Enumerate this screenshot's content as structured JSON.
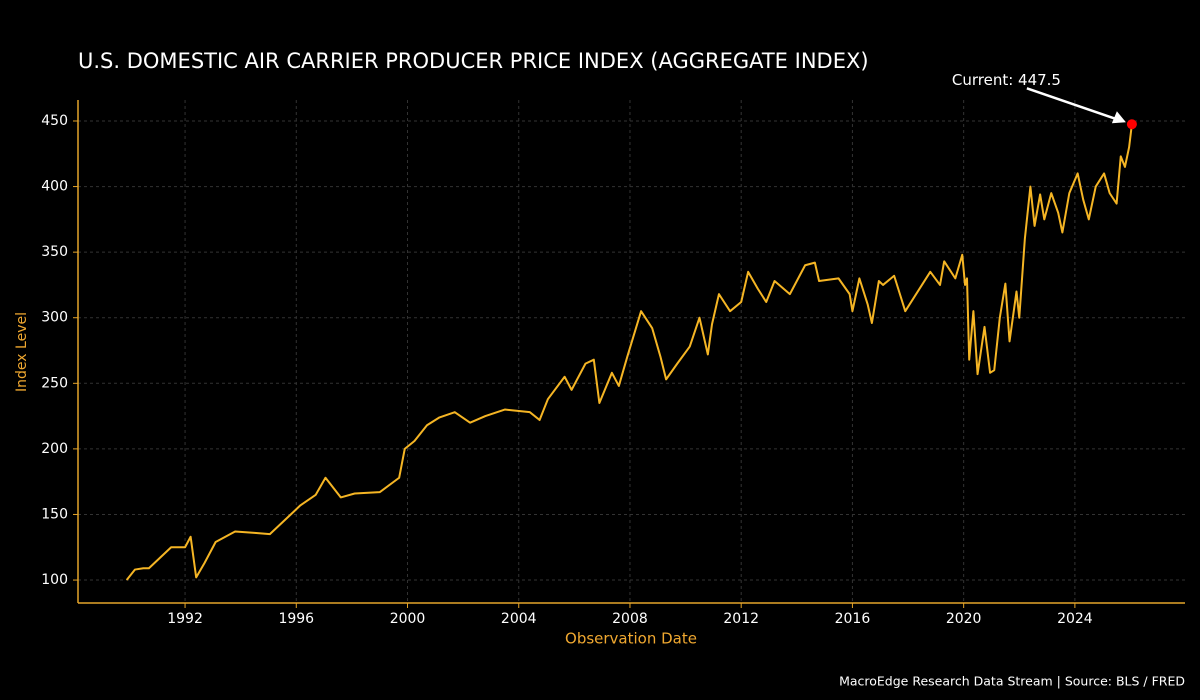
{
  "chart_data": {
    "type": "line",
    "title": "U.S. DOMESTIC AIR CARRIER PRODUCER PRICE INDEX (AGGREGATE INDEX)",
    "x_label": "Observation Date",
    "y_label": "Index Level",
    "source": "MacroEdge Research Data Stream | Source: BLS / FRED",
    "annotation": {
      "text": "Current: 447.5",
      "color": "#ff0000"
    },
    "x": [
      1989.9,
      1990.2,
      1990.5,
      1990.7,
      1991.0,
      1991.5,
      1992.0,
      1992.2,
      1992.4,
      1992.7,
      1993.1,
      1993.8,
      1994.5,
      1995.05,
      1995.8,
      1996.15,
      1996.7,
      1997.05,
      1997.6,
      1998.1,
      1999.0,
      1999.7,
      1999.9,
      2000.25,
      2000.7,
      2001.15,
      2001.7,
      2002.25,
      2002.8,
      2003.5,
      2004.4,
      2004.75,
      2005.05,
      2005.65,
      2005.9,
      2006.4,
      2006.7,
      2006.9,
      2007.35,
      2007.6,
      2007.9,
      2008.4,
      2008.8,
      2009.1,
      2009.3,
      2009.7,
      2010.15,
      2010.5,
      2010.8,
      2010.95,
      2011.2,
      2011.6,
      2012.0,
      2012.25,
      2012.6,
      2012.9,
      2013.2,
      2013.75,
      2014.3,
      2014.65,
      2014.8,
      2015.5,
      2015.9,
      2016.0,
      2016.25,
      2016.55,
      2016.7,
      2016.95,
      2017.1,
      2017.5,
      2017.9,
      2018.8,
      2019.15,
      2019.3,
      2019.7,
      2019.95,
      2020.05,
      2020.12,
      2020.2,
      2020.35,
      2020.5,
      2020.75,
      2020.95,
      2021.1,
      2021.3,
      2021.5,
      2021.65,
      2021.9,
      2022.0,
      2022.2,
      2022.4,
      2022.55,
      2022.75,
      2022.9,
      2023.15,
      2023.4,
      2023.55,
      2023.8,
      2024.1,
      2024.3,
      2024.5,
      2024.75,
      2025.05,
      2025.25,
      2025.5,
      2025.65,
      2025.8,
      2025.95,
      2026.05
    ],
    "series": [
      {
        "color": "#f5b524",
        "values": [
          100,
          108,
          109,
          109,
          115,
          125,
          125,
          133,
          102,
          113,
          129,
          137,
          136,
          135,
          150,
          157,
          165,
          178,
          163,
          166,
          167,
          178,
          200,
          206,
          218,
          224,
          228,
          220,
          225,
          230,
          228,
          222,
          238,
          255,
          245,
          265,
          268,
          235,
          258,
          248,
          270,
          305,
          292,
          270,
          253,
          265,
          278,
          300,
          272,
          295,
          318,
          305,
          312,
          335,
          322,
          312,
          328,
          318,
          340,
          342,
          328,
          330,
          318,
          305,
          330,
          310,
          296,
          328,
          325,
          332,
          305,
          335,
          325,
          343,
          330,
          348,
          325,
          330,
          268,
          305,
          257,
          293,
          258,
          260,
          300,
          326,
          282,
          320,
          300,
          360,
          400,
          370,
          394,
          375,
          395,
          380,
          365,
          395,
          410,
          390,
          375,
          400,
          410,
          395,
          387,
          423,
          415,
          430,
          447.5
        ]
      }
    ],
    "xlim": [
      1988.15,
      2027.96
    ],
    "ylim": [
      82.5,
      466
    ],
    "xticks": [
      1992,
      1996,
      2000,
      2004,
      2008,
      2012,
      2016,
      2020,
      2024
    ],
    "yticks": [
      100,
      150,
      200,
      250,
      300,
      350,
      400,
      450
    ],
    "grid": true
  }
}
